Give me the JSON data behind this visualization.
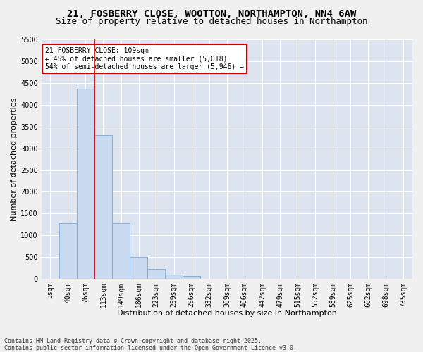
{
  "title_line1": "21, FOSBERRY CLOSE, WOOTTON, NORTHAMPTON, NN4 6AW",
  "title_line2": "Size of property relative to detached houses in Northampton",
  "xlabel": "Distribution of detached houses by size in Northampton",
  "ylabel": "Number of detached properties",
  "categories": [
    "3sqm",
    "40sqm",
    "76sqm",
    "113sqm",
    "149sqm",
    "186sqm",
    "223sqm",
    "259sqm",
    "296sqm",
    "332sqm",
    "369sqm",
    "406sqm",
    "442sqm",
    "479sqm",
    "515sqm",
    "552sqm",
    "589sqm",
    "625sqm",
    "662sqm",
    "698sqm",
    "735sqm"
  ],
  "values": [
    0,
    1270,
    4380,
    3300,
    1280,
    500,
    220,
    90,
    55,
    0,
    0,
    0,
    0,
    0,
    0,
    0,
    0,
    0,
    0,
    0,
    0
  ],
  "bar_color": "#c9d9f0",
  "bar_edge_color": "#7aa8d8",
  "ylim": [
    0,
    5500
  ],
  "yticks": [
    0,
    500,
    1000,
    1500,
    2000,
    2500,
    3000,
    3500,
    4000,
    4500,
    5000,
    5500
  ],
  "vline_x": 3.0,
  "vline_color": "#cc0000",
  "annotation_text": "21 FOSBERRY CLOSE: 109sqm\n← 45% of detached houses are smaller (5,018)\n54% of semi-detached houses are larger (5,946) →",
  "annotation_box_color": "#cc0000",
  "bg_color": "#dde4f0",
  "fig_bg_color": "#f0f0f0",
  "footer_line1": "Contains HM Land Registry data © Crown copyright and database right 2025.",
  "footer_line2": "Contains public sector information licensed under the Open Government Licence v3.0.",
  "title_fontsize": 10,
  "subtitle_fontsize": 9,
  "axis_label_fontsize": 8,
  "tick_fontsize": 7,
  "footer_fontsize": 6,
  "annotation_fontsize": 7
}
